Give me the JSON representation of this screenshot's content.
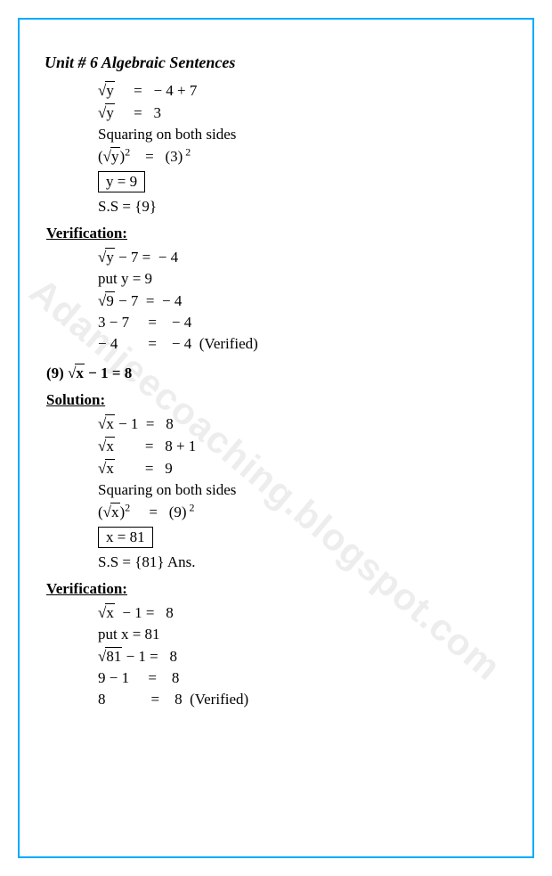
{
  "title": "Unit # 6 Algebraic Sentences",
  "watermark": "Adamjeecoaching.blogspot.com",
  "sec1": {
    "l1_left": "y",
    "l1_eq": "=",
    "l1_right": "− 4 + 7",
    "l2_left": "y",
    "l2_eq": "=",
    "l2_right": "3",
    "l3": "Squaring on both sides",
    "l4_left": "y",
    "l4_eq": "=",
    "l4_right": "(3)",
    "l5_box": "y = 9",
    "l6": "S.S = {9}"
  },
  "ver1": {
    "heading": "Verification:",
    "l1_left": "y",
    "l1_mid": " − 7 =",
    "l1_right": "  − 4",
    "l2": "put y = 9",
    "l3_left": "9",
    "l3_mid": " − 7  =",
    "l3_right": "  − 4",
    "l4": "3 − 7     =    − 4",
    "l5": "− 4        =    − 4  (Verified)"
  },
  "prob": {
    "num": "(9)   ",
    "rad": "x",
    "rest": "  − 1 = 8"
  },
  "sol": {
    "heading": "Solution:",
    "l1_left": "x",
    "l1_mid": " − 1  =",
    "l1_right": "   8",
    "l2_left": "x",
    "l2_mid": "        =",
    "l2_right": "   8 + 1",
    "l3_left": "x",
    "l3_mid": "        =",
    "l3_right": "   9",
    "l4": "Squaring on both sides",
    "l5_left": "x",
    "l5_mid": "     =",
    "l5_right": "   (9)",
    "l6_box": "x = 81",
    "l7": "S.S = {81} Ans."
  },
  "ver2": {
    "heading": "Verification:",
    "l1_left": "x",
    "l1_mid": "  − 1 =",
    "l1_right": "   8",
    "l2": "put x = 81",
    "l3_left": "81",
    "l3_mid": " − 1 =",
    "l3_right": "   8",
    "l4": "9 − 1     =    8",
    "l5": "8            =    8  (Verified)"
  }
}
